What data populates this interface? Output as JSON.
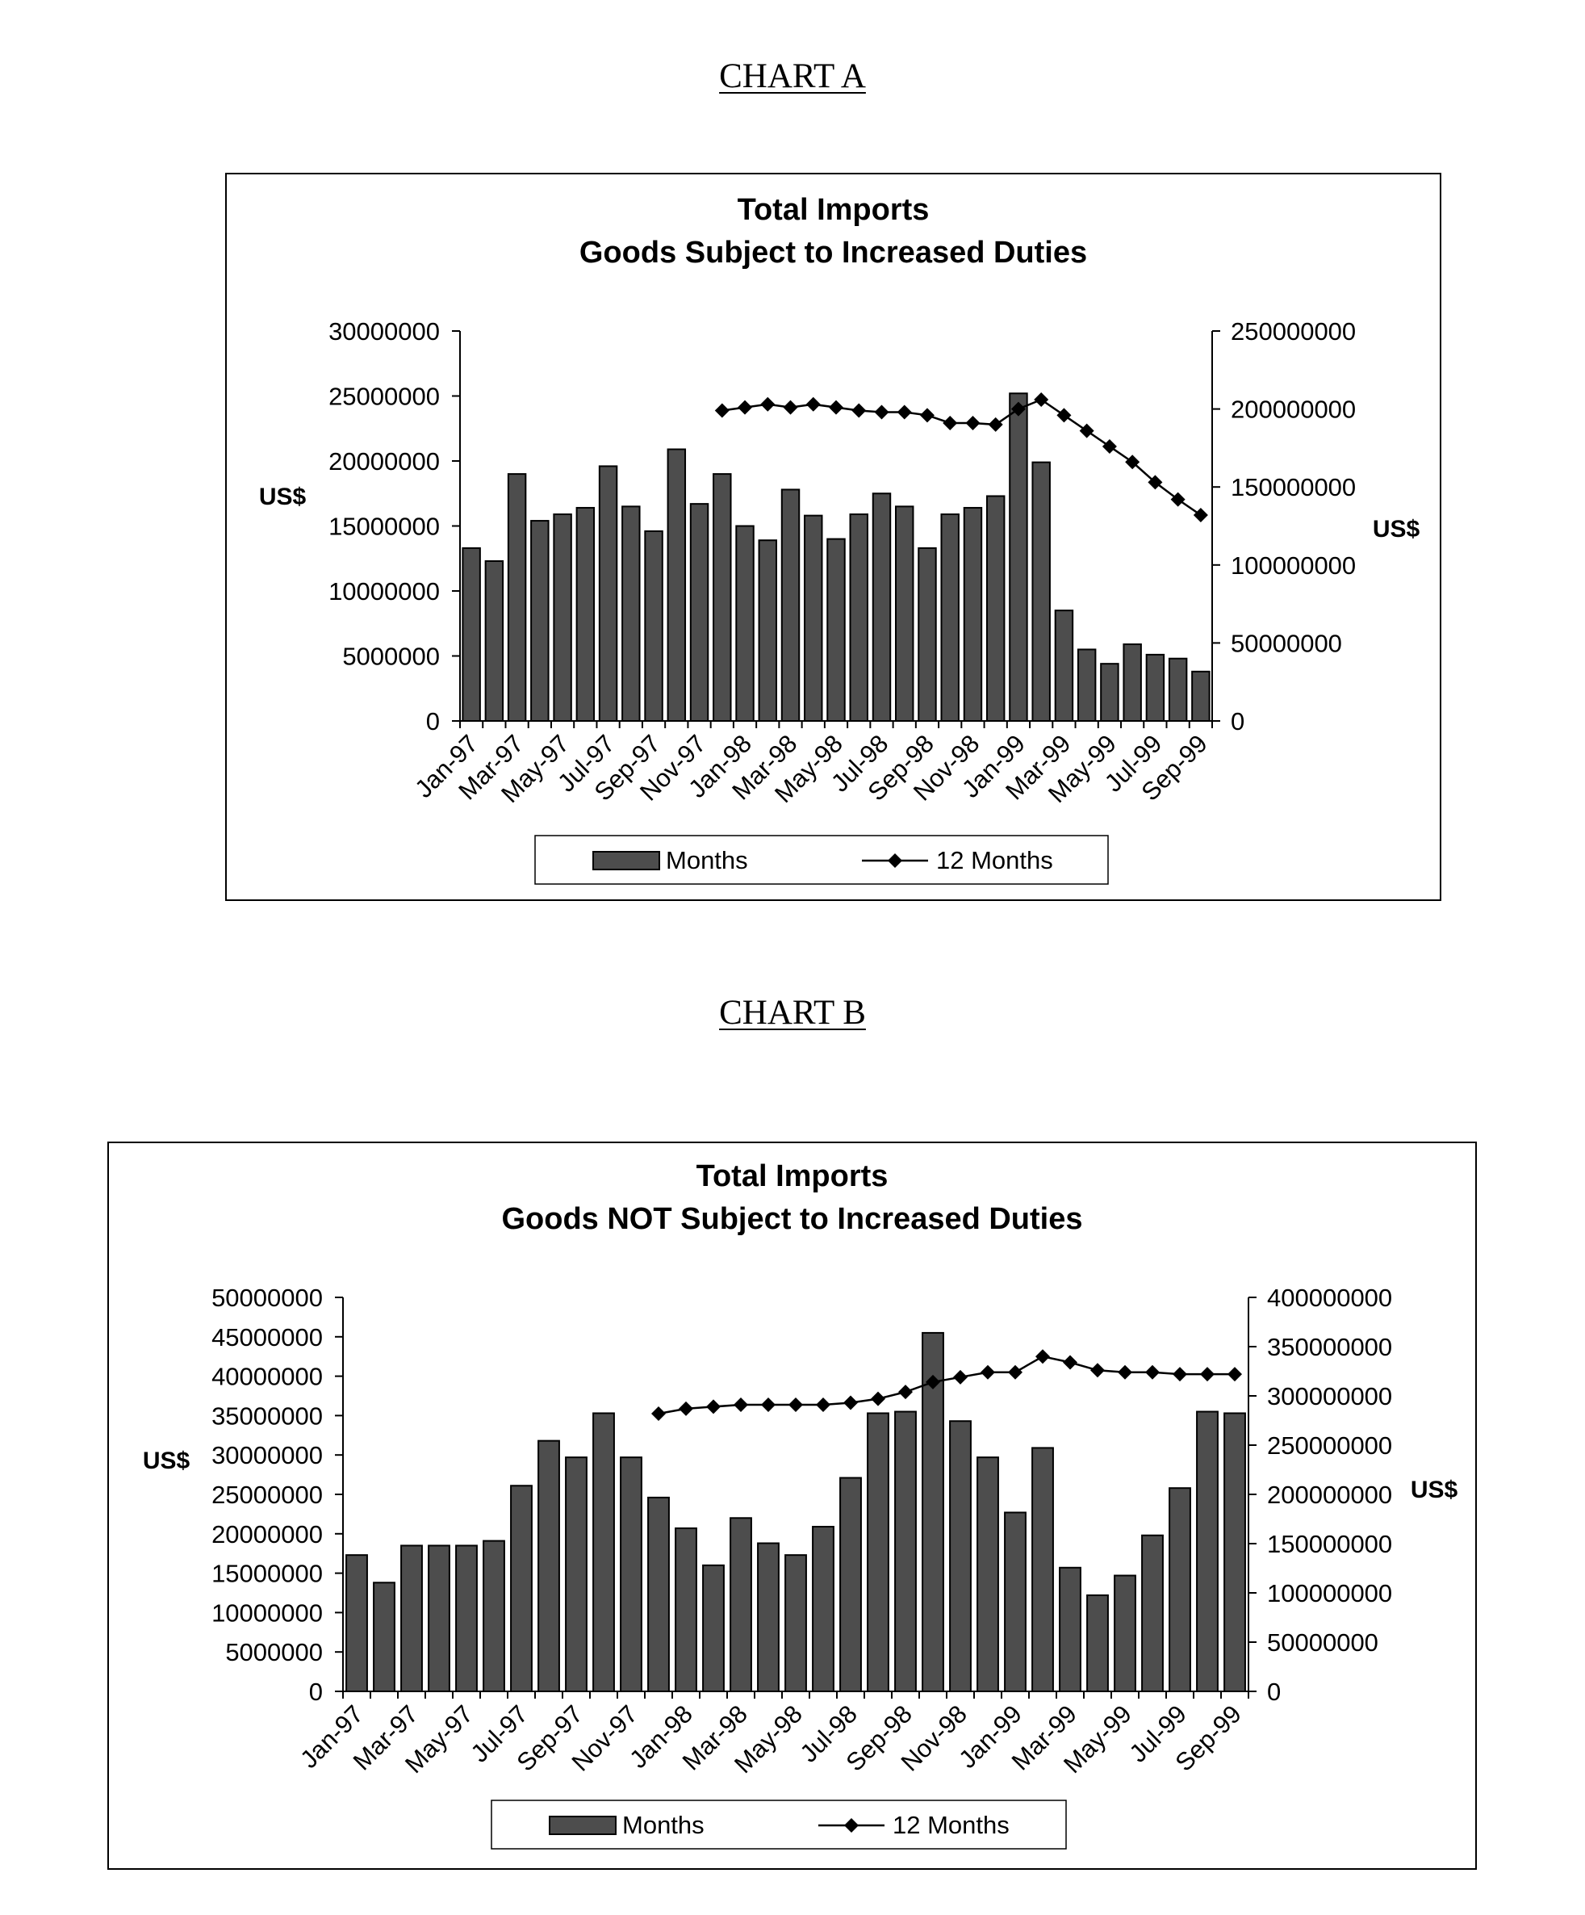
{
  "headings": {
    "chart_a": "CHART A",
    "chart_b": "CHART B"
  },
  "chart_data": [
    {
      "type": "bar+line",
      "title": "Total Imports",
      "subtitle": "Goods Subject to Increased Duties",
      "ylabel_left": "US$",
      "ylabel_right": "US$",
      "ylim_left": [
        0,
        30000000
      ],
      "ylim_right": [
        0,
        250000000
      ],
      "yticks_left": [
        "30000000",
        "25000000",
        "20000000",
        "15000000",
        "10000000",
        "5000000",
        "0"
      ],
      "yticks_right": [
        "250000000",
        "200000000",
        "150000000",
        "100000000",
        "50000000",
        "0"
      ],
      "x_tick_labels": [
        "Jan-97",
        "Mar-97",
        "May-97",
        "Jul-97",
        "Sep-97",
        "Nov-97",
        "Jan-98",
        "Mar-98",
        "May-98",
        "Jul-98",
        "Sep-98",
        "Nov-98",
        "Jan-99",
        "Mar-99",
        "May-99",
        "Jul-99",
        "Sep-99"
      ],
      "categories": [
        "Jan-97",
        "Feb-97",
        "Mar-97",
        "Apr-97",
        "May-97",
        "Jun-97",
        "Jul-97",
        "Aug-97",
        "Sep-97",
        "Oct-97",
        "Nov-97",
        "Dec-97",
        "Jan-98",
        "Feb-98",
        "Mar-98",
        "Apr-98",
        "May-98",
        "Jun-98",
        "Jul-98",
        "Aug-98",
        "Sep-98",
        "Oct-98",
        "Nov-98",
        "Dec-98",
        "Jan-99",
        "Feb-99",
        "Mar-99",
        "Apr-99",
        "May-99",
        "Jun-99",
        "Jul-99",
        "Aug-99",
        "Sep-99"
      ],
      "series": [
        {
          "name": "Months",
          "kind": "bar",
          "axis": "left",
          "values": [
            13300000,
            12300000,
            19000000,
            15400000,
            15900000,
            16400000,
            19600000,
            16500000,
            14600000,
            20900000,
            16700000,
            19000000,
            15000000,
            13900000,
            17800000,
            15800000,
            14000000,
            15900000,
            17500000,
            16500000,
            13300000,
            15900000,
            16400000,
            17300000,
            25200000,
            19900000,
            8500000,
            5500000,
            4400000,
            5900000,
            5100000,
            4800000,
            3800000
          ]
        },
        {
          "name": "12 Months",
          "kind": "line",
          "axis": "right",
          "values": [
            null,
            null,
            null,
            null,
            null,
            null,
            null,
            null,
            null,
            null,
            null,
            199000000,
            201000000,
            203000000,
            201000000,
            203000000,
            201000000,
            199000000,
            198000000,
            198000000,
            196000000,
            191000000,
            191000000,
            190000000,
            200000000,
            206000000,
            196000000,
            186000000,
            176000000,
            166000000,
            153000000,
            142000000,
            132000000
          ]
        }
      ],
      "legend": {
        "position": "bottom",
        "entries": [
          "Months",
          "12 Months"
        ]
      },
      "grid": false,
      "colors": {
        "bar_fill": "#4d4d4d",
        "line": "#000000",
        "frame": "#000000"
      }
    },
    {
      "type": "bar+line",
      "title": "Total Imports",
      "subtitle": "Goods NOT Subject to Increased Duties",
      "ylabel_left": "US$",
      "ylabel_right": "US$",
      "ylim_left": [
        0,
        50000000
      ],
      "ylim_right": [
        0,
        400000000
      ],
      "yticks_left": [
        "50000000",
        "45000000",
        "40000000",
        "35000000",
        "30000000",
        "25000000",
        "20000000",
        "15000000",
        "10000000",
        "5000000",
        "0"
      ],
      "yticks_right": [
        "400000000",
        "350000000",
        "300000000",
        "250000000",
        "200000000",
        "150000000",
        "100000000",
        "50000000",
        "0"
      ],
      "x_tick_labels": [
        "Jan-97",
        "Mar-97",
        "May-97",
        "Jul-97",
        "Sep-97",
        "Nov-97",
        "Jan-98",
        "Mar-98",
        "May-98",
        "Jul-98",
        "Sep-98",
        "Nov-98",
        "Jan-99",
        "Mar-99",
        "May-99",
        "Jul-99",
        "Sep-99"
      ],
      "categories": [
        "Jan-97",
        "Feb-97",
        "Mar-97",
        "Apr-97",
        "May-97",
        "Jun-97",
        "Jul-97",
        "Aug-97",
        "Sep-97",
        "Oct-97",
        "Nov-97",
        "Dec-97",
        "Jan-98",
        "Feb-98",
        "Mar-98",
        "Apr-98",
        "May-98",
        "Jun-98",
        "Jul-98",
        "Aug-98",
        "Sep-98",
        "Oct-98",
        "Nov-98",
        "Dec-98",
        "Jan-99",
        "Feb-99",
        "Mar-99",
        "Apr-99",
        "May-99",
        "Jun-99",
        "Jul-99",
        "Aug-99",
        "Sep-99"
      ],
      "series": [
        {
          "name": "Months",
          "kind": "bar",
          "axis": "left",
          "values": [
            17300000,
            13800000,
            18500000,
            18500000,
            18500000,
            19100000,
            26100000,
            31800000,
            29700000,
            35300000,
            29700000,
            24600000,
            20700000,
            16000000,
            22000000,
            18800000,
            17300000,
            20900000,
            27100000,
            35300000,
            35500000,
            45500000,
            34300000,
            29700000,
            22700000,
            30900000,
            15700000,
            12200000,
            14700000,
            19800000,
            25800000,
            35500000,
            35300000
          ]
        },
        {
          "name": "12 Months",
          "kind": "line",
          "axis": "right",
          "values": [
            null,
            null,
            null,
            null,
            null,
            null,
            null,
            null,
            null,
            null,
            null,
            282000000,
            287000000,
            289000000,
            291000000,
            291000000,
            291000000,
            291000000,
            293000000,
            297000000,
            304000000,
            314000000,
            319000000,
            324000000,
            324000000,
            340000000,
            334000000,
            326000000,
            324000000,
            324000000,
            322000000,
            322000000,
            322000000
          ]
        }
      ],
      "legend": {
        "position": "bottom",
        "entries": [
          "Months",
          "12 Months"
        ]
      },
      "grid": false,
      "colors": {
        "bar_fill": "#4d4d4d",
        "line": "#000000",
        "frame": "#000000"
      }
    }
  ]
}
